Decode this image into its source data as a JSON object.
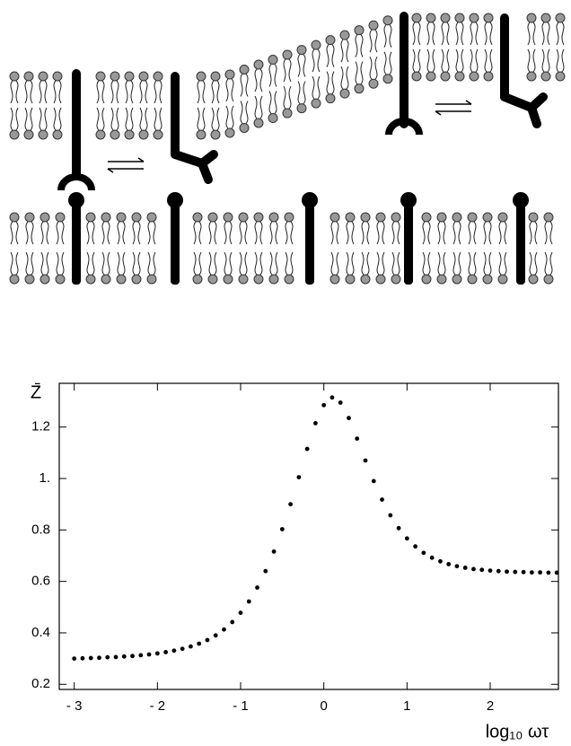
{
  "chart_data": {
    "type": "scatter",
    "ylabel": "Z̄",
    "xlabel": "log₁₀ ωτ",
    "color": "#000000",
    "x": [
      -3.0,
      -2.9,
      -2.8,
      -2.7,
      -2.6,
      -2.5,
      -2.4,
      -2.3,
      -2.2,
      -2.1,
      -2.0,
      -1.9,
      -1.8,
      -1.7,
      -1.6,
      -1.5,
      -1.4,
      -1.3,
      -1.2,
      -1.1,
      -1.0,
      -0.9,
      -0.8,
      -0.7,
      -0.6,
      -0.5,
      -0.4,
      -0.3,
      -0.2,
      -0.1,
      0.0,
      0.1,
      0.2,
      0.3,
      0.4,
      0.5,
      0.6,
      0.7,
      0.8,
      0.9,
      1.0,
      1.1,
      1.2,
      1.3,
      1.4,
      1.5,
      1.6,
      1.7,
      1.8,
      1.9,
      2.0,
      2.1,
      2.2,
      2.3,
      2.4,
      2.5,
      2.6,
      2.7,
      2.8
    ],
    "values": [
      0.3,
      0.301,
      0.302,
      0.303,
      0.305,
      0.306,
      0.308,
      0.31,
      0.313,
      0.316,
      0.32,
      0.325,
      0.331,
      0.338,
      0.347,
      0.358,
      0.372,
      0.39,
      0.413,
      0.442,
      0.478,
      0.522,
      0.576,
      0.64,
      0.716,
      0.803,
      0.9,
      1.005,
      1.115,
      1.215,
      1.285,
      1.315,
      1.295,
      1.235,
      1.155,
      1.07,
      0.99,
      0.918,
      0.857,
      0.807,
      0.767,
      0.736,
      0.711,
      0.692,
      0.678,
      0.667,
      0.659,
      0.653,
      0.648,
      0.645,
      0.642,
      0.64,
      0.638,
      0.637,
      0.636,
      0.635,
      0.635,
      0.634,
      0.634
    ],
    "xlim": [
      -3.18,
      2.82
    ],
    "ylim": [
      0.18,
      1.37
    ],
    "xticks": [
      {
        "value": -3,
        "label": "- 3"
      },
      {
        "value": -2,
        "label": "- 2"
      },
      {
        "value": -1,
        "label": "- 1"
      },
      0,
      1,
      2
    ],
    "yticks": [
      0.2,
      0.4,
      0.6,
      0.8,
      {
        "value": 1,
        "label": "1."
      },
      1.2
    ]
  }
}
